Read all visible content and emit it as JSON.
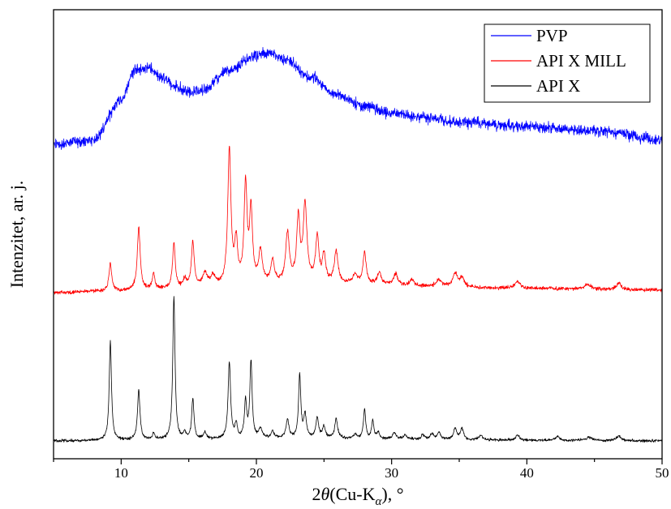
{
  "chart_data": {
    "type": "line",
    "title": "",
    "xlabel": {
      "prefix": "2",
      "theta": "θ",
      "main": "(Cu-K",
      "sub": "α",
      "suffix": "), °"
    },
    "ylabel": "Intenzitet, ar. j.",
    "xlim": [
      5,
      50
    ],
    "ylim": [
      0,
      100
    ],
    "xticks": [
      10,
      20,
      30,
      40,
      50
    ],
    "y_tick_labels": false,
    "grid": false,
    "legend": {
      "placement": "top-right"
    },
    "series": [
      {
        "name": "PVP",
        "color": "#0000ff",
        "noise": 1.2,
        "baseline": [
          [
            5,
            70
          ],
          [
            8,
            71
          ],
          [
            10,
            80
          ],
          [
            11,
            86.5
          ],
          [
            12,
            87
          ],
          [
            13,
            85
          ],
          [
            14,
            83
          ],
          [
            15,
            81.5
          ],
          [
            16,
            82
          ],
          [
            18,
            86.5
          ],
          [
            20,
            90
          ],
          [
            21,
            90.5
          ],
          [
            22,
            89
          ],
          [
            24,
            85
          ],
          [
            26,
            81
          ],
          [
            28,
            78.5
          ],
          [
            30,
            77
          ],
          [
            32,
            76
          ],
          [
            35,
            75
          ],
          [
            40,
            74
          ],
          [
            45,
            73
          ],
          [
            50,
            71
          ]
        ],
        "peaks": []
      },
      {
        "name": "API X MILL",
        "color": "#ff0000",
        "noise": 0.4,
        "baseline": [
          [
            5,
            37
          ],
          [
            9,
            37.3
          ],
          [
            15,
            37.8
          ],
          [
            17,
            38.3
          ],
          [
            20,
            38.8
          ],
          [
            24,
            39.2
          ],
          [
            28,
            38.8
          ],
          [
            32,
            38.3
          ],
          [
            40,
            37.9
          ],
          [
            50,
            37.6
          ]
        ],
        "peaks": [
          [
            9.2,
            6,
            0.12
          ],
          [
            11.3,
            14,
            0.13
          ],
          [
            12.4,
            3.5,
            0.12
          ],
          [
            13.9,
            10,
            0.12
          ],
          [
            14.7,
            2,
            0.15
          ],
          [
            15.3,
            10,
            0.13
          ],
          [
            16.2,
            3,
            0.2
          ],
          [
            16.8,
            2,
            0.2
          ],
          [
            18.0,
            30,
            0.14
          ],
          [
            18.5,
            9,
            0.13
          ],
          [
            19.2,
            22,
            0.13
          ],
          [
            19.6,
            16,
            0.13
          ],
          [
            20.3,
            7,
            0.16
          ],
          [
            21.2,
            5,
            0.15
          ],
          [
            22.3,
            11,
            0.16
          ],
          [
            23.1,
            14,
            0.14
          ],
          [
            23.6,
            17,
            0.16
          ],
          [
            24.5,
            10,
            0.14
          ],
          [
            25.0,
            6,
            0.14
          ],
          [
            25.9,
            7,
            0.16
          ],
          [
            27.3,
            2,
            0.2
          ],
          [
            28.0,
            7,
            0.14
          ],
          [
            29.1,
            2.5,
            0.18
          ],
          [
            30.3,
            2.5,
            0.2
          ],
          [
            31.5,
            1.5,
            0.2
          ],
          [
            33.5,
            1.5,
            0.25
          ],
          [
            34.7,
            3,
            0.2
          ],
          [
            35.2,
            2,
            0.2
          ],
          [
            39.3,
            1.5,
            0.25
          ],
          [
            44.5,
            1,
            0.3
          ],
          [
            46.8,
            1.5,
            0.2
          ]
        ]
      },
      {
        "name": "API X",
        "color": "#000000",
        "noise": 0.3,
        "baseline": [
          [
            5,
            4
          ],
          [
            15,
            4.2
          ],
          [
            20,
            4.5
          ],
          [
            25,
            4.5
          ],
          [
            30,
            4.3
          ],
          [
            40,
            4.1
          ],
          [
            50,
            4
          ]
        ],
        "peaks": [
          [
            9.2,
            22,
            0.1
          ],
          [
            11.3,
            11,
            0.11
          ],
          [
            12.4,
            1.5,
            0.1
          ],
          [
            13.9,
            32,
            0.1
          ],
          [
            14.7,
            1.5,
            0.12
          ],
          [
            15.3,
            9,
            0.1
          ],
          [
            16.2,
            1.5,
            0.15
          ],
          [
            18.0,
            17,
            0.11
          ],
          [
            18.5,
            3,
            0.1
          ],
          [
            19.2,
            8,
            0.1
          ],
          [
            19.6,
            17,
            0.1
          ],
          [
            20.3,
            2,
            0.14
          ],
          [
            21.2,
            1.5,
            0.13
          ],
          [
            22.3,
            4,
            0.13
          ],
          [
            23.2,
            14,
            0.1
          ],
          [
            23.6,
            5,
            0.12
          ],
          [
            24.5,
            4.5,
            0.12
          ],
          [
            25.0,
            2.5,
            0.13
          ],
          [
            25.9,
            4.5,
            0.12
          ],
          [
            27.3,
            1,
            0.15
          ],
          [
            28.0,
            6.5,
            0.1
          ],
          [
            28.6,
            4,
            0.1
          ],
          [
            29.0,
            1.5,
            0.12
          ],
          [
            30.2,
            1.5,
            0.15
          ],
          [
            31.0,
            1,
            0.15
          ],
          [
            32.3,
            1,
            0.15
          ],
          [
            33.0,
            1.2,
            0.15
          ],
          [
            33.5,
            1.5,
            0.15
          ],
          [
            34.7,
            2.5,
            0.14
          ],
          [
            35.2,
            2.5,
            0.14
          ],
          [
            36.6,
            1,
            0.18
          ],
          [
            39.3,
            1,
            0.2
          ],
          [
            42.3,
            0.8,
            0.2
          ],
          [
            44.6,
            0.7,
            0.25
          ],
          [
            46.8,
            1,
            0.2
          ]
        ]
      }
    ]
  }
}
